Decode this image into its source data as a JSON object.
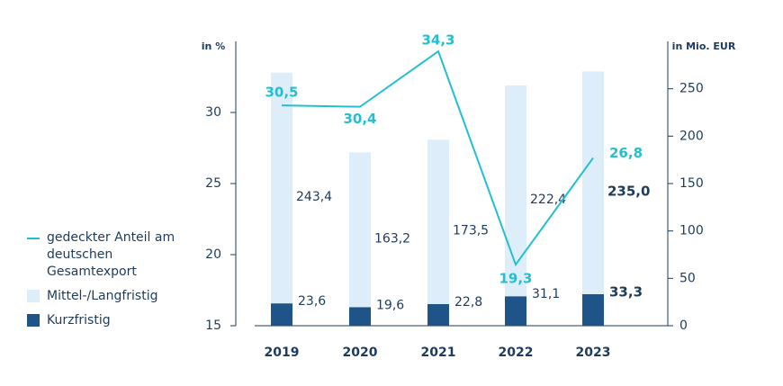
{
  "chart_data": {
    "type": "bar-line",
    "categories": [
      "2019",
      "2020",
      "2021",
      "2022",
      "2023"
    ],
    "ylabel": "in %",
    "y2label": "in Mio. EUR",
    "ylim": [
      15,
      35
    ],
    "yticks": [
      15,
      20,
      25,
      30
    ],
    "y2lim": [
      0,
      300
    ],
    "y2ticks": [
      0,
      50,
      100,
      150,
      200,
      250
    ],
    "series": [
      {
        "name": "gedeckter Anteil am deutschen Gesamtexport",
        "kind": "line",
        "color": "#22bfd0",
        "axis": "y",
        "values": [
          30.5,
          30.4,
          34.3,
          19.3,
          26.8
        ],
        "value_labels": [
          "30,5",
          "30,4",
          "34,3",
          "19,3",
          "26,8"
        ]
      },
      {
        "name": "Mittel-/Langfristig",
        "kind": "bar",
        "color": "#ddeefa",
        "axis": "y2",
        "values": [
          243.4,
          163.2,
          173.5,
          222.4,
          235.0
        ],
        "value_labels": [
          "243,4",
          "163,2",
          "173,5",
          "222,4",
          "235,0"
        ]
      },
      {
        "name": "Kurzfristig",
        "kind": "bar",
        "color": "#1f5489",
        "axis": "y2",
        "values": [
          23.6,
          19.6,
          22.8,
          31.1,
          33.3
        ],
        "value_labels": [
          "23,6",
          "19,6",
          "22,8",
          "31,1",
          "33,3"
        ]
      }
    ]
  }
}
